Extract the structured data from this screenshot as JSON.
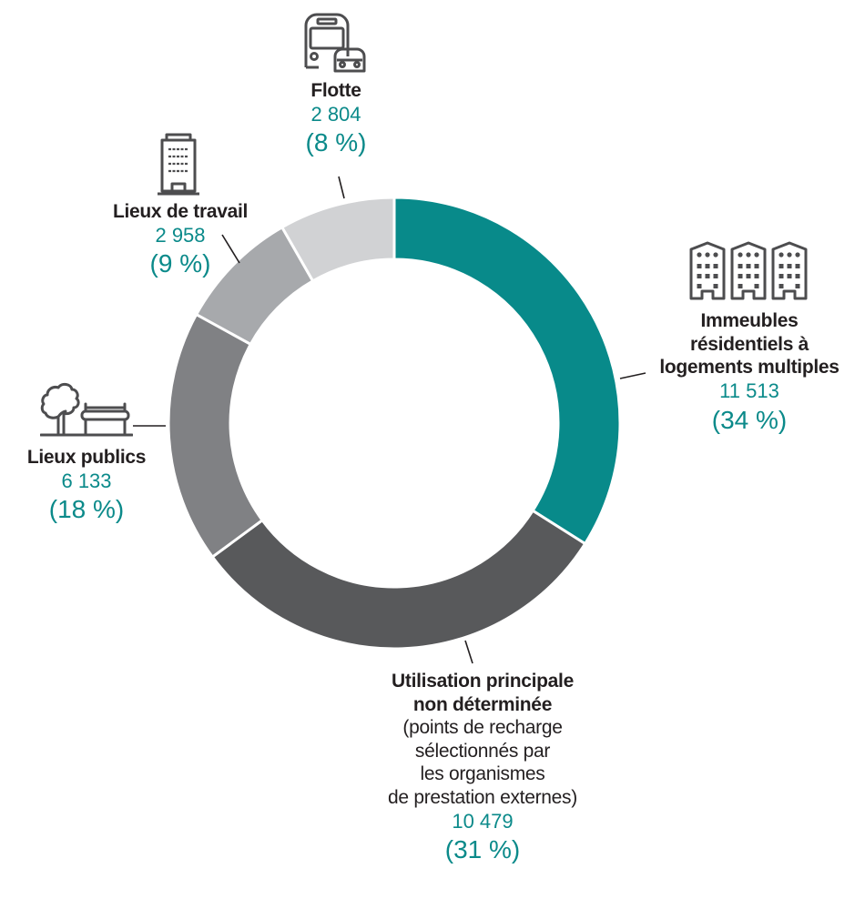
{
  "chart_data": {
    "type": "pie",
    "subtype": "donut",
    "title": "",
    "total": 33887,
    "start_angle_deg": 0,
    "direction": "clockwise",
    "center": [
      433,
      465
    ],
    "outer_radius": 248,
    "inner_radius": 180,
    "slices": [
      {
        "id": "residential",
        "label": "Immeubles résidentiels à logements multiples",
        "value": 11513,
        "percent": 34,
        "color": "#088a8a"
      },
      {
        "id": "undetermined",
        "label": "Utilisation principale non déterminée (points de recharge sélectionnés par les organismes de prestation externes)",
        "value": 10479,
        "percent": 31,
        "color": "#58595b"
      },
      {
        "id": "public",
        "label": "Lieux publics",
        "value": 6133,
        "percent": 18,
        "color": "#808184"
      },
      {
        "id": "workplace",
        "label": "Lieux de travail",
        "value": 2958,
        "percent": 9,
        "color": "#a7a9ac"
      },
      {
        "id": "fleet",
        "label": "Flotte",
        "value": 2804,
        "percent": 8,
        "color": "#d1d2d4"
      }
    ]
  },
  "labels": {
    "fleet": {
      "name": "Flotte",
      "value": "2 804",
      "percent": "(8 %)",
      "icon": "bus-car-icon"
    },
    "workplace": {
      "name": "Lieux de travail",
      "value": "2 958",
      "percent": "(9 %)",
      "icon": "office-tower-icon"
    },
    "residential": {
      "name_line1": "Immeubles",
      "name_line2": "résidentiels à",
      "name_line3": "logements multiples",
      "value": "11 513",
      "percent": "(34 %)",
      "icon": "apartment-buildings-icon"
    },
    "public": {
      "name": "Lieux publics",
      "value": "6 133",
      "percent": "(18 %)",
      "icon": "tree-bench-icon"
    },
    "undetermined": {
      "name_line1": "Utilisation principale",
      "name_line2": "non déterminée",
      "sub_line1": "(points de recharge",
      "sub_line2": "sélectionnés par",
      "sub_line3": "les organismes",
      "sub_line4": "de prestation externes)",
      "value": "10 479",
      "percent": "(31 %)"
    }
  }
}
